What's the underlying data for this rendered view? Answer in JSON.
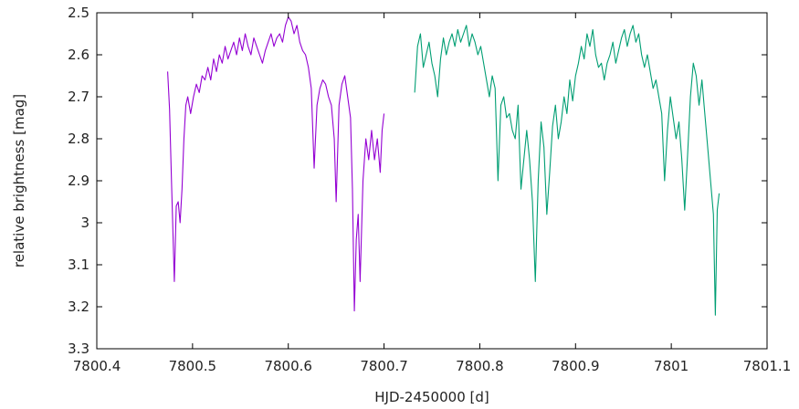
{
  "chart_data": {
    "type": "line",
    "title": "",
    "xlabel": "HJD-2450000 [d]",
    "ylabel": "relative brightness [mag]",
    "xlim": [
      7800.4,
      7801.1
    ],
    "ylim": [
      2.5,
      3.3
    ],
    "y_inverted": true,
    "grid": false,
    "legend": "none",
    "x_ticks": [
      {
        "value": 7800.4,
        "label": "7800.4"
      },
      {
        "value": 7800.5,
        "label": "7800.5"
      },
      {
        "value": 7800.6,
        "label": "7800.6"
      },
      {
        "value": 7800.7,
        "label": "7800.7"
      },
      {
        "value": 7800.8,
        "label": "7800.8"
      },
      {
        "value": 7800.9,
        "label": "7800.9"
      },
      {
        "value": 7801.0,
        "label": "7801"
      },
      {
        "value": 7801.1,
        "label": "7801.1"
      }
    ],
    "y_ticks": [
      {
        "value": 2.5,
        "label": "2.5"
      },
      {
        "value": 2.6,
        "label": "2.6"
      },
      {
        "value": 2.7,
        "label": "2.7"
      },
      {
        "value": 2.8,
        "label": "2.8"
      },
      {
        "value": 2.9,
        "label": "2.9"
      },
      {
        "value": 3.0,
        "label": "3"
      },
      {
        "value": 3.1,
        "label": "3.1"
      },
      {
        "value": 3.2,
        "label": "3.2"
      },
      {
        "value": 3.3,
        "label": "3.3"
      }
    ],
    "series": [
      {
        "color": "#9400d3",
        "x": [
          7800.474,
          7800.476,
          7800.478,
          7800.479,
          7800.481,
          7800.483,
          7800.485,
          7800.487,
          7800.489,
          7800.491,
          7800.493,
          7800.495,
          7800.498,
          7800.501,
          7800.504,
          7800.507,
          7800.51,
          7800.513,
          7800.516,
          7800.519,
          7800.522,
          7800.525,
          7800.528,
          7800.531,
          7800.534,
          7800.537,
          7800.54,
          7800.543,
          7800.546,
          7800.549,
          7800.552,
          7800.555,
          7800.558,
          7800.561,
          7800.564,
          7800.567,
          7800.57,
          7800.573,
          7800.576,
          7800.579,
          7800.582,
          7800.585,
          7800.588,
          7800.591,
          7800.594,
          7800.597,
          7800.6,
          7800.603,
          7800.606,
          7800.609,
          7800.612,
          7800.615,
          7800.618,
          7800.621,
          7800.624,
          7800.627,
          7800.63,
          7800.633,
          7800.636,
          7800.639,
          7800.642,
          7800.645,
          7800.648,
          7800.65,
          7800.653,
          7800.656,
          7800.659,
          7800.662,
          7800.665,
          7800.667,
          7800.669,
          7800.671,
          7800.673,
          7800.675,
          7800.678,
          7800.681,
          7800.684,
          7800.687,
          7800.69,
          7800.693,
          7800.696,
          7800.698,
          7800.7
        ],
        "y": [
          2.64,
          2.73,
          2.9,
          2.98,
          3.14,
          2.96,
          2.95,
          3.0,
          2.92,
          2.8,
          2.72,
          2.7,
          2.74,
          2.7,
          2.67,
          2.69,
          2.65,
          2.66,
          2.63,
          2.66,
          2.61,
          2.64,
          2.6,
          2.62,
          2.58,
          2.61,
          2.59,
          2.57,
          2.6,
          2.56,
          2.59,
          2.55,
          2.58,
          2.6,
          2.56,
          2.58,
          2.6,
          2.62,
          2.59,
          2.57,
          2.55,
          2.58,
          2.56,
          2.55,
          2.57,
          2.53,
          2.51,
          2.52,
          2.55,
          2.53,
          2.57,
          2.59,
          2.6,
          2.63,
          2.68,
          2.87,
          2.72,
          2.68,
          2.66,
          2.67,
          2.7,
          2.72,
          2.8,
          2.95,
          2.72,
          2.67,
          2.65,
          2.7,
          2.75,
          2.92,
          3.21,
          3.04,
          2.98,
          3.14,
          2.9,
          2.8,
          2.85,
          2.78,
          2.85,
          2.8,
          2.88,
          2.78,
          2.74
        ]
      },
      {
        "color": "#009e73",
        "x": [
          7800.732,
          7800.735,
          7800.738,
          7800.741,
          7800.744,
          7800.747,
          7800.75,
          7800.753,
          7800.756,
          7800.759,
          7800.762,
          7800.765,
          7800.768,
          7800.771,
          7800.774,
          7800.777,
          7800.78,
          7800.783,
          7800.786,
          7800.789,
          7800.792,
          7800.795,
          7800.798,
          7800.801,
          7800.804,
          7800.807,
          7800.81,
          7800.813,
          7800.816,
          7800.819,
          7800.822,
          7800.825,
          7800.828,
          7800.831,
          7800.834,
          7800.837,
          7800.84,
          7800.843,
          7800.846,
          7800.849,
          7800.852,
          7800.855,
          7800.858,
          7800.861,
          7800.864,
          7800.867,
          7800.87,
          7800.873,
          7800.876,
          7800.879,
          7800.882,
          7800.885,
          7800.888,
          7800.891,
          7800.894,
          7800.897,
          7800.9,
          7800.903,
          7800.906,
          7800.909,
          7800.912,
          7800.915,
          7800.918,
          7800.921,
          7800.924,
          7800.927,
          7800.93,
          7800.933,
          7800.936,
          7800.939,
          7800.942,
          7800.945,
          7800.948,
          7800.951,
          7800.954,
          7800.957,
          7800.96,
          7800.963,
          7800.966,
          7800.969,
          7800.972,
          7800.975,
          7800.978,
          7800.981,
          7800.984,
          7800.987,
          7800.99,
          7800.993,
          7800.996,
          7800.999,
          7801.002,
          7801.005,
          7801.008,
          7801.011,
          7801.014,
          7801.017,
          7801.02,
          7801.023,
          7801.026,
          7801.029,
          7801.032,
          7801.035,
          7801.038,
          7801.041,
          7801.044,
          7801.046,
          7801.048,
          7801.05
        ],
        "y": [
          2.69,
          2.58,
          2.55,
          2.63,
          2.6,
          2.57,
          2.62,
          2.65,
          2.7,
          2.61,
          2.56,
          2.6,
          2.57,
          2.55,
          2.58,
          2.54,
          2.57,
          2.55,
          2.53,
          2.58,
          2.55,
          2.57,
          2.6,
          2.58,
          2.62,
          2.66,
          2.7,
          2.65,
          2.68,
          2.9,
          2.72,
          2.7,
          2.75,
          2.74,
          2.78,
          2.8,
          2.72,
          2.92,
          2.85,
          2.78,
          2.85,
          2.95,
          3.14,
          2.9,
          2.76,
          2.82,
          2.98,
          2.88,
          2.77,
          2.72,
          2.8,
          2.76,
          2.7,
          2.74,
          2.66,
          2.71,
          2.65,
          2.62,
          2.58,
          2.61,
          2.55,
          2.58,
          2.54,
          2.6,
          2.63,
          2.62,
          2.66,
          2.62,
          2.6,
          2.57,
          2.62,
          2.59,
          2.56,
          2.54,
          2.58,
          2.55,
          2.53,
          2.57,
          2.55,
          2.6,
          2.63,
          2.6,
          2.64,
          2.68,
          2.66,
          2.7,
          2.74,
          2.9,
          2.78,
          2.7,
          2.75,
          2.8,
          2.76,
          2.85,
          2.97,
          2.84,
          2.7,
          2.62,
          2.65,
          2.72,
          2.66,
          2.74,
          2.82,
          2.9,
          2.98,
          3.22,
          2.97,
          2.93
        ]
      }
    ]
  }
}
